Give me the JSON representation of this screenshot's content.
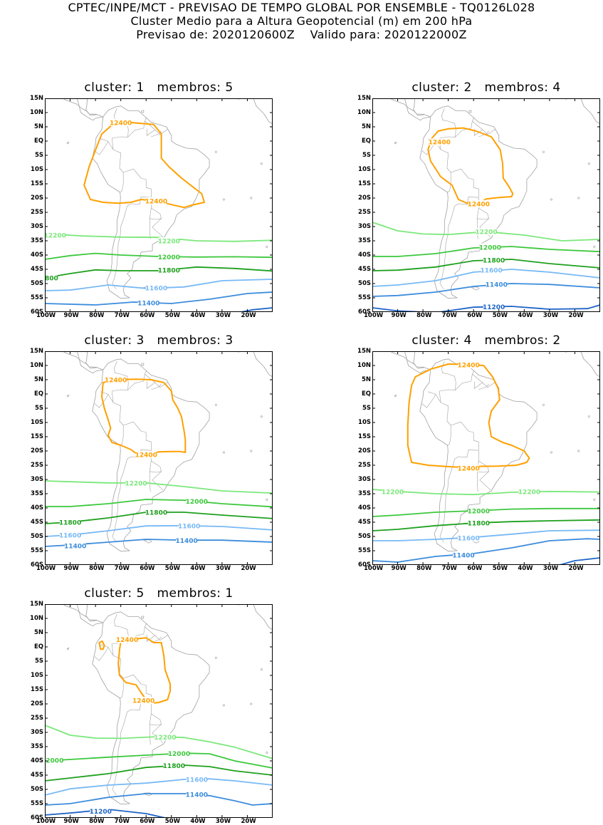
{
  "header": {
    "line1": "CPTEC/INPE/MCT - PREVISAO DE TEMPO GLOBAL POR ENSEMBLE - TQ0126L028",
    "line2": "Cluster Medio para a Altura Geopotencial (m) em 200 hPa",
    "line3": "Previsao de: 2020120600Z    Valido para: 2020122000Z"
  },
  "axes": {
    "lat_labels": [
      "15N",
      "10N",
      "5N",
      "EQ",
      "5S",
      "10S",
      "15S",
      "20S",
      "25S",
      "30S",
      "35S",
      "40S",
      "45S",
      "50S",
      "55S",
      "60S"
    ],
    "lon_labels": [
      "100W",
      "90W",
      "80W",
      "70W",
      "60W",
      "50W",
      "40W",
      "30W",
      "20W"
    ]
  },
  "colors": {
    "c12400": "#ffa000",
    "c12200": "#7be87b",
    "c12000": "#3cc83c",
    "c11800": "#1ea01e",
    "c11600": "#78b9f5",
    "c11400": "#3c8cdc",
    "c11200": "#1e64c8",
    "coast": "#a0a0a0"
  },
  "panels": [
    {
      "title": "cluster: 1   membros: 5",
      "contours": [
        {
          "level": "12400",
          "labels": [
            "12400",
            "12400"
          ]
        },
        {
          "level": "12200",
          "labels": [
            "12200",
            "12200"
          ]
        },
        {
          "level": "12000",
          "labels": [
            "12000"
          ]
        },
        {
          "level": "11800",
          "labels": [
            "800",
            "11800"
          ]
        },
        {
          "level": "11600",
          "labels": [
            "11600"
          ]
        },
        {
          "level": "11400",
          "labels": [
            "11400"
          ]
        }
      ]
    },
    {
      "title": "cluster: 2   membros: 4",
      "contours": [
        {
          "level": "12400",
          "labels": [
            "12400",
            "12400"
          ]
        },
        {
          "level": "12200",
          "labels": [
            "12200"
          ]
        },
        {
          "level": "12000",
          "labels": [
            "12000"
          ]
        },
        {
          "level": "11800",
          "labels": [
            "11800"
          ]
        },
        {
          "level": "11600",
          "labels": [
            "11600"
          ]
        },
        {
          "level": "11400",
          "labels": [
            "11400"
          ]
        },
        {
          "level": "11200",
          "labels": [
            "11200"
          ]
        }
      ]
    },
    {
      "title": "cluster: 3   membros: 3",
      "contours": [
        {
          "level": "12400",
          "labels": [
            "12400",
            "12400"
          ]
        },
        {
          "level": "12200",
          "labels": [
            "12200"
          ]
        },
        {
          "level": "12000",
          "labels": [
            "12000"
          ]
        },
        {
          "level": "11800",
          "labels": [
            "11800",
            "11800"
          ]
        },
        {
          "level": "11600",
          "labels": [
            "11600",
            "11600"
          ]
        },
        {
          "level": "11400",
          "labels": [
            "11400",
            "11400"
          ]
        }
      ]
    },
    {
      "title": "cluster: 4   membros: 2",
      "contours": [
        {
          "level": "12400",
          "labels": [
            "12400",
            "12400"
          ]
        },
        {
          "level": "12200",
          "labels": [
            "12200",
            "12200"
          ]
        },
        {
          "level": "12000",
          "labels": [
            "12000"
          ]
        },
        {
          "level": "11800",
          "labels": [
            "11800"
          ]
        },
        {
          "level": "11600",
          "labels": [
            "11600"
          ]
        },
        {
          "level": "11400",
          "labels": [
            "11400"
          ]
        }
      ]
    },
    {
      "title": "cluster: 5   membros: 1",
      "contours": [
        {
          "level": "12400",
          "labels": [
            "12400",
            "12400"
          ]
        },
        {
          "level": "12200",
          "labels": [
            "12200"
          ]
        },
        {
          "level": "12000",
          "labels": [
            "12000",
            "12000"
          ]
        },
        {
          "level": "11800",
          "labels": [
            "11800"
          ]
        },
        {
          "level": "11600",
          "labels": [
            "11600"
          ]
        },
        {
          "level": "11400",
          "labels": [
            "11400"
          ]
        },
        {
          "level": "11200",
          "labels": [
            "11200"
          ]
        }
      ]
    }
  ]
}
